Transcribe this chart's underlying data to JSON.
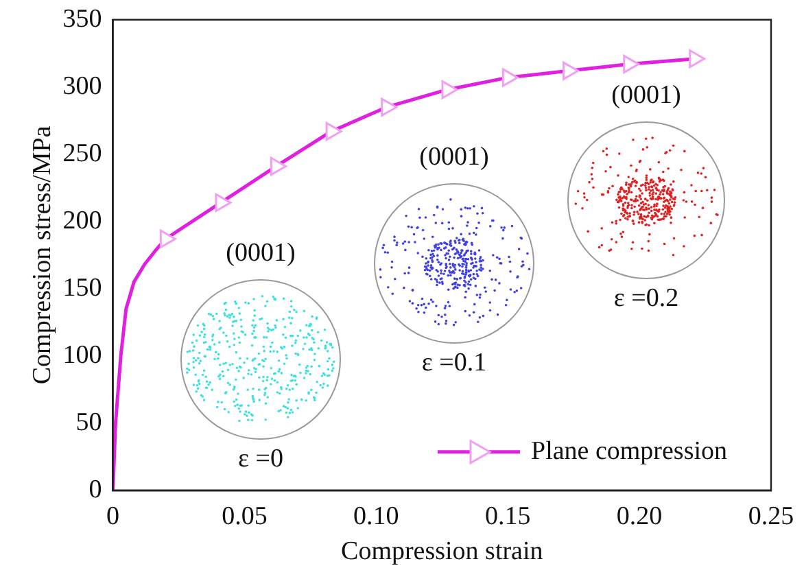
{
  "chart_data": {
    "type": "line",
    "xlabel": "Compression strain",
    "ylabel": "Compression stress/MPa",
    "xlim": [
      0,
      0.25
    ],
    "xticks": [
      {
        "value": 0,
        "label": "0"
      },
      0.05,
      {
        "value": 0.1,
        "label": "0.10"
      },
      0.15,
      {
        "value": 0.2,
        "label": "0.20"
      },
      0.25
    ],
    "ylim": [
      0,
      350
    ],
    "yticks": [
      0,
      50,
      100,
      150,
      200,
      250,
      300,
      350
    ],
    "series": [
      {
        "name": "Plane compression",
        "color": "#e020e0",
        "marker": "triangle",
        "x": [
          0.02,
          0.041,
          0.062,
          0.083,
          0.104,
          0.127,
          0.15,
          0.173,
          0.196,
          0.221
        ],
        "values": [
          187,
          214,
          241,
          267,
          285,
          298,
          307,
          312,
          317,
          321
        ]
      },
      {
        "color": "#e020e0",
        "marker": "none",
        "x": [
          0,
          0.001,
          0.003,
          0.005,
          0.008,
          0.012,
          0.016,
          0.02
        ],
        "values": [
          0,
          50,
          100,
          135,
          155,
          168,
          178,
          187
        ]
      }
    ],
    "legend": "bottom right",
    "grid": false,
    "annotations": [
      "(0001)",
      "ε =0",
      "(0001)",
      "ε =0.1",
      "(0001)",
      "ε =0.2"
    ]
  }
}
